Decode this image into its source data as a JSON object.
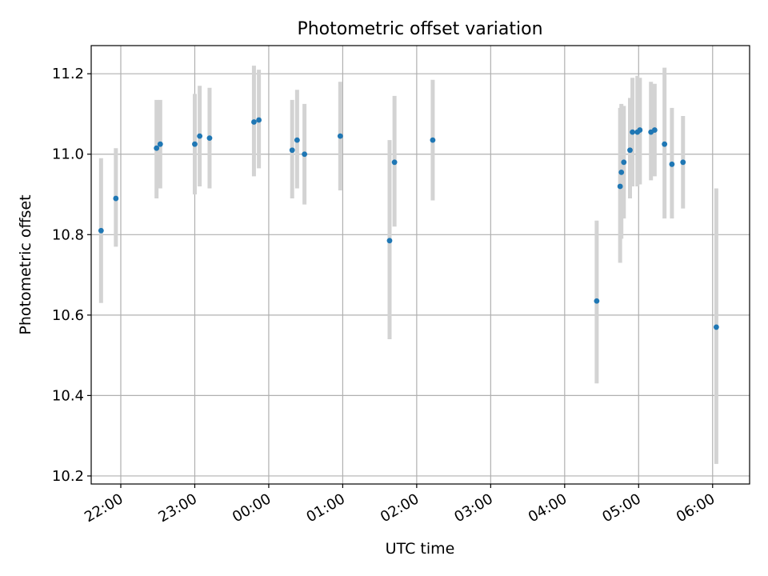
{
  "chart_data": {
    "type": "scatter",
    "title": "Photometric offset variation",
    "xlabel": "UTC time",
    "ylabel": "Photometric offset",
    "xlim": [
      "21:36",
      "06:30"
    ],
    "ylim": [
      10.18,
      11.27
    ],
    "grid": true,
    "xticks": [
      "22:00",
      "23:00",
      "00:00",
      "01:00",
      "02:00",
      "03:00",
      "04:00",
      "05:00",
      "06:00"
    ],
    "yticks": [
      "10.2",
      "10.4",
      "10.6",
      "10.8",
      "11.0",
      "11.2"
    ],
    "points": [
      {
        "t": "21:44",
        "y": 10.81,
        "lo": 10.63,
        "hi": 10.99
      },
      {
        "t": "21:56",
        "y": 10.89,
        "lo": 10.77,
        "hi": 11.015
      },
      {
        "t": "22:29",
        "y": 11.015,
        "lo": 10.89,
        "hi": 11.135
      },
      {
        "t": "22:32",
        "y": 11.025,
        "lo": 10.915,
        "hi": 11.135
      },
      {
        "t": "23:00",
        "y": 11.025,
        "lo": 10.9,
        "hi": 11.15
      },
      {
        "t": "23:04",
        "y": 11.045,
        "lo": 10.92,
        "hi": 11.17
      },
      {
        "t": "23:12",
        "y": 11.04,
        "lo": 10.915,
        "hi": 11.165
      },
      {
        "t": "23:48",
        "y": 11.08,
        "lo": 10.945,
        "hi": 11.22
      },
      {
        "t": "23:52",
        "y": 11.085,
        "lo": 10.965,
        "hi": 11.21
      },
      {
        "t": "00:19",
        "y": 11.01,
        "lo": 10.89,
        "hi": 11.135
      },
      {
        "t": "00:23",
        "y": 11.035,
        "lo": 10.915,
        "hi": 11.16
      },
      {
        "t": "00:29",
        "y": 11.0,
        "lo": 10.875,
        "hi": 11.125
      },
      {
        "t": "00:58",
        "y": 11.045,
        "lo": 10.91,
        "hi": 11.18
      },
      {
        "t": "01:38",
        "y": 10.785,
        "lo": 10.54,
        "hi": 11.035
      },
      {
        "t": "01:42",
        "y": 10.98,
        "lo": 10.82,
        "hi": 11.145
      },
      {
        "t": "02:13",
        "y": 11.035,
        "lo": 10.885,
        "hi": 11.185
      },
      {
        "t": "04:26",
        "y": 10.635,
        "lo": 10.43,
        "hi": 10.835
      },
      {
        "t": "04:45",
        "y": 10.92,
        "lo": 10.73,
        "hi": 11.115
      },
      {
        "t": "04:46",
        "y": 10.955,
        "lo": 10.79,
        "hi": 11.125
      },
      {
        "t": "04:48",
        "y": 10.98,
        "lo": 10.84,
        "hi": 11.12
      },
      {
        "t": "04:53",
        "y": 11.01,
        "lo": 10.89,
        "hi": 11.14
      },
      {
        "t": "04:55",
        "y": 11.055,
        "lo": 10.92,
        "hi": 11.19
      },
      {
        "t": "04:59",
        "y": 11.055,
        "lo": 10.92,
        "hi": 11.195
      },
      {
        "t": "05:01",
        "y": 11.06,
        "lo": 10.925,
        "hi": 11.19
      },
      {
        "t": "05:10",
        "y": 11.055,
        "lo": 10.935,
        "hi": 11.18
      },
      {
        "t": "05:13",
        "y": 11.06,
        "lo": 10.945,
        "hi": 11.175
      },
      {
        "t": "05:21",
        "y": 11.025,
        "lo": 10.84,
        "hi": 11.215
      },
      {
        "t": "05:27",
        "y": 10.975,
        "lo": 10.84,
        "hi": 11.115
      },
      {
        "t": "05:36",
        "y": 10.98,
        "lo": 10.865,
        "hi": 11.095
      },
      {
        "t": "06:03",
        "y": 10.57,
        "lo": 10.23,
        "hi": 10.915
      }
    ]
  },
  "colors": {
    "point": "#1f77b4",
    "errorbar": "#d3d3d3",
    "grid": "#b0b0b0",
    "axes": "#000000"
  }
}
